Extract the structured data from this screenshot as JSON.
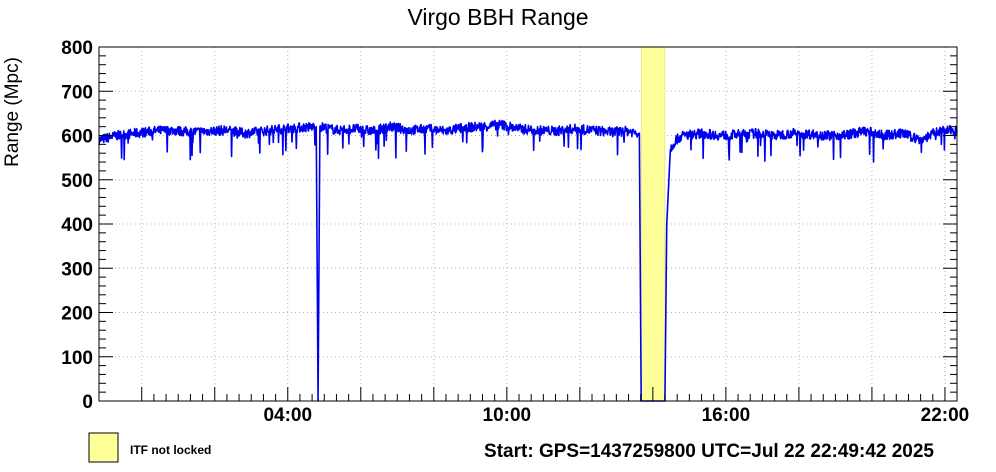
{
  "chart_data": {
    "type": "line",
    "title": "Virgo BBH Range",
    "ylabel": "Range (Mpc)",
    "xlabel": "",
    "ylim": [
      0,
      800
    ],
    "yticks": [
      0,
      100,
      200,
      300,
      400,
      500,
      600,
      700,
      800
    ],
    "xlim_hours_since_start": [
      0,
      23.5
    ],
    "xticks": [
      {
        "t": 5.17,
        "label": "04:00"
      },
      {
        "t": 11.17,
        "label": "10:00"
      },
      {
        "t": 17.17,
        "label": "16:00"
      },
      {
        "t": 23.17,
        "label": "22:00"
      }
    ],
    "grid": true,
    "series": [
      {
        "name": "",
        "color": "#0000ee",
        "x": [
          0,
          0.5,
          1.0,
          1.5,
          2.0,
          2.5,
          3.0,
          3.5,
          4.0,
          4.5,
          5.0,
          5.5,
          5.95,
          6.0,
          6.05,
          6.5,
          7.0,
          7.5,
          8.0,
          8.5,
          9.0,
          9.5,
          10.0,
          10.5,
          11.0,
          11.5,
          12.0,
          12.5,
          13.0,
          13.5,
          14.0,
          14.5,
          14.8,
          14.85,
          15.5,
          15.55,
          15.65,
          15.8,
          16.0,
          16.5,
          17.0,
          17.5,
          18.0,
          18.5,
          19.0,
          19.5,
          20.0,
          20.5,
          21.0,
          21.5,
          22.0,
          22.5,
          23.0,
          23.5
        ],
        "y": [
          590,
          600,
          605,
          610,
          612,
          608,
          610,
          612,
          605,
          610,
          615,
          618,
          620,
          0,
          620,
          612,
          615,
          610,
          620,
          612,
          615,
          610,
          618,
          620,
          625,
          615,
          612,
          610,
          615,
          612,
          608,
          610,
          605,
          0,
          0,
          400,
          570,
          590,
          600,
          605,
          600,
          602,
          605,
          600,
          605,
          603,
          600,
          602,
          610,
          600,
          605,
          590,
          610,
          612
        ]
      }
    ],
    "shaded_regions": [
      {
        "label": "ITF not locked",
        "x_start": 14.85,
        "x_end": 15.5,
        "color": "#ffff99"
      }
    ],
    "legend": {
      "position": "bottom-left",
      "entries": [
        "ITF not locked"
      ]
    },
    "footer": "Start: GPS=1437259800 UTC=Jul 22 22:49:42 2025"
  }
}
